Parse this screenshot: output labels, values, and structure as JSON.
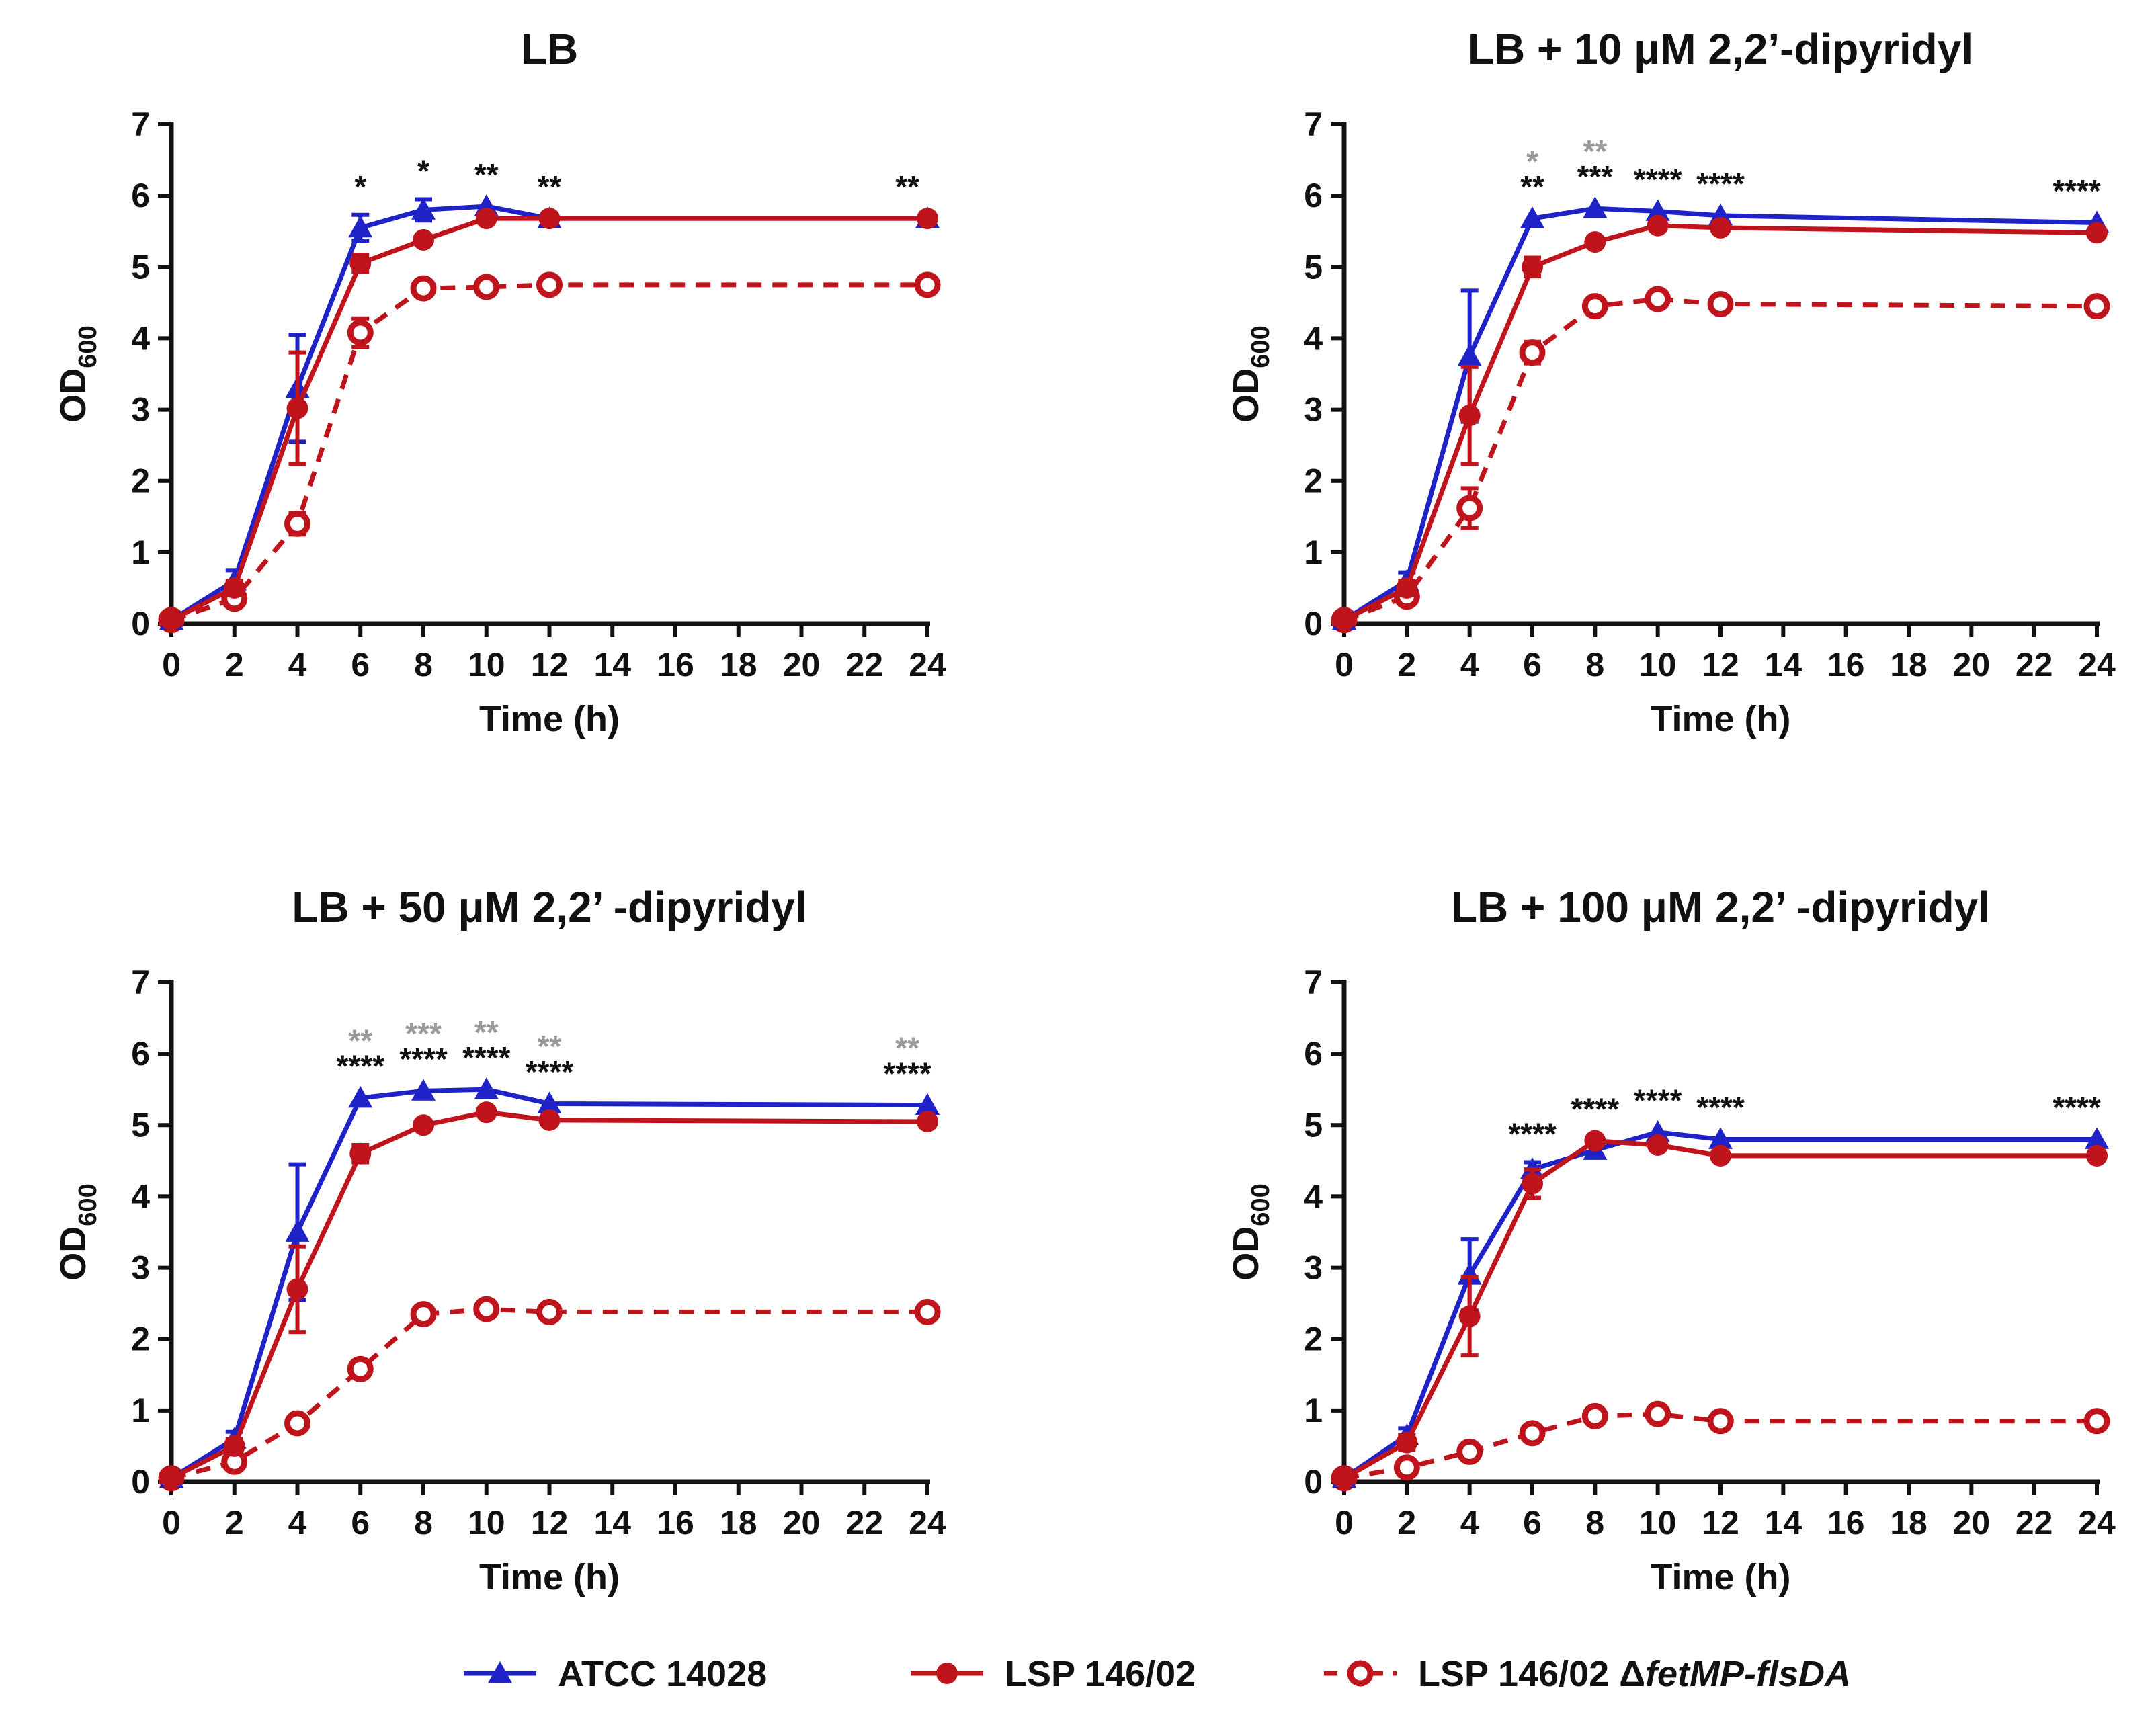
{
  "figure": {
    "legend": [
      {
        "label": "ATCC 14028",
        "series": "atcc",
        "label_suffix": ""
      },
      {
        "label": "LSP 146/02",
        "series": "lsp",
        "label_suffix": ""
      },
      {
        "label": "LSP 146/02 Δ",
        "series": "mut",
        "label_suffix": "fetMP-flsDA"
      }
    ],
    "series_styles": {
      "atcc": {
        "color": "#1f22c7",
        "marker": "triangle",
        "dash": "solid"
      },
      "lsp": {
        "color": "#c0141c",
        "marker": "circle",
        "dash": "solid"
      },
      "mut": {
        "color": "#c0141c",
        "marker": "open-circle",
        "dash": "dashed"
      }
    },
    "significance_colors": {
      "black": "#111111",
      "gray": "#9a9a9a"
    }
  },
  "chart_data": [
    {
      "type": "line",
      "title": "LB",
      "xlabel": "Time (h)",
      "ylabel": "OD",
      "ylabel_sub": "600",
      "ylim": [
        0,
        7
      ],
      "yticks": [
        0,
        1,
        2,
        3,
        4,
        5,
        6,
        7
      ],
      "xticks": [
        0,
        2,
        4,
        6,
        8,
        10,
        12,
        14,
        16,
        18,
        20,
        22,
        24
      ],
      "x": [
        0,
        2,
        4,
        6,
        8,
        10,
        12,
        24
      ],
      "series": [
        {
          "key": "atcc",
          "name": "ATCC 14028",
          "values": [
            0.05,
            0.6,
            3.3,
            5.55,
            5.8,
            5.85,
            5.68,
            5.68
          ],
          "errors": [
            0.03,
            0.15,
            0.75,
            0.18,
            0.15,
            0.05,
            0.05,
            0.05
          ]
        },
        {
          "key": "lsp",
          "name": "LSP 146/02",
          "values": [
            0.05,
            0.5,
            3.02,
            5.05,
            5.38,
            5.68,
            5.68,
            5.68
          ],
          "errors": [
            0.03,
            0.1,
            0.78,
            0.12,
            0.05,
            0.05,
            0.05,
            0.05
          ]
        },
        {
          "key": "mut",
          "name": "LSP 146/02 ΔfetMP-flsDA",
          "values": [
            0.05,
            0.35,
            1.4,
            4.08,
            4.7,
            4.72,
            4.75,
            4.75
          ],
          "errors": [
            0.03,
            0.05,
            0.15,
            0.2,
            0.1,
            0.1,
            0.1,
            0.1
          ]
        }
      ],
      "annotations": [
        {
          "x": 6,
          "lines": [
            {
              "text": "*",
              "color": "black"
            }
          ]
        },
        {
          "x": 8,
          "lines": [
            {
              "text": "*",
              "color": "black"
            }
          ]
        },
        {
          "x": 10,
          "lines": [
            {
              "text": "**",
              "color": "black"
            }
          ]
        },
        {
          "x": 12,
          "lines": [
            {
              "text": "**",
              "color": "black"
            }
          ]
        },
        {
          "x": 24,
          "lines": [
            {
              "text": "**",
              "color": "black"
            }
          ]
        }
      ]
    },
    {
      "type": "line",
      "title": "LB + 10 μM 2,2’-dipyridyl",
      "xlabel": "Time (h)",
      "ylabel": "OD",
      "ylabel_sub": "600",
      "ylim": [
        0,
        7
      ],
      "yticks": [
        0,
        1,
        2,
        3,
        4,
        5,
        6,
        7
      ],
      "xticks": [
        0,
        2,
        4,
        6,
        8,
        10,
        12,
        14,
        16,
        18,
        20,
        22,
        24
      ],
      "x": [
        0,
        2,
        4,
        6,
        8,
        10,
        12,
        24
      ],
      "series": [
        {
          "key": "atcc",
          "name": "ATCC 14028",
          "values": [
            0.05,
            0.6,
            3.75,
            5.68,
            5.82,
            5.78,
            5.72,
            5.62
          ],
          "errors": [
            0.03,
            0.12,
            0.92,
            0.05,
            0.05,
            0.05,
            0.05,
            0.05
          ]
        },
        {
          "key": "lsp",
          "name": "LSP 146/02",
          "values": [
            0.05,
            0.5,
            2.92,
            5.0,
            5.35,
            5.58,
            5.55,
            5.48
          ],
          "errors": [
            0.03,
            0.1,
            0.68,
            0.13,
            0.05,
            0.05,
            0.05,
            0.05
          ]
        },
        {
          "key": "mut",
          "name": "LSP 146/02 ΔfetMP-flsDA",
          "values": [
            0.05,
            0.38,
            1.62,
            3.8,
            4.45,
            4.55,
            4.48,
            4.45
          ],
          "errors": [
            0.03,
            0.05,
            0.28,
            0.15,
            0.05,
            0.05,
            0.05,
            0.05
          ]
        }
      ],
      "annotations": [
        {
          "x": 6,
          "lines": [
            {
              "text": "*",
              "color": "gray"
            },
            {
              "text": "**",
              "color": "black"
            }
          ]
        },
        {
          "x": 8,
          "lines": [
            {
              "text": "**",
              "color": "gray"
            },
            {
              "text": "***",
              "color": "black"
            }
          ]
        },
        {
          "x": 10,
          "lines": [
            {
              "text": "****",
              "color": "black"
            }
          ]
        },
        {
          "x": 12,
          "lines": [
            {
              "text": "****",
              "color": "black"
            }
          ]
        },
        {
          "x": 24,
          "lines": [
            {
              "text": "****",
              "color": "black"
            }
          ]
        }
      ]
    },
    {
      "type": "line",
      "title": "LB + 50 μM 2,2’ -dipyridyl",
      "xlabel": "Time (h)",
      "ylabel": "OD",
      "ylabel_sub": "600",
      "ylim": [
        0,
        7
      ],
      "yticks": [
        0,
        1,
        2,
        3,
        4,
        5,
        6,
        7
      ],
      "xticks": [
        0,
        2,
        4,
        6,
        8,
        10,
        12,
        14,
        16,
        18,
        20,
        22,
        24
      ],
      "x": [
        0,
        2,
        4,
        6,
        8,
        10,
        12,
        24
      ],
      "series": [
        {
          "key": "atcc",
          "name": "ATCC 14028",
          "values": [
            0.05,
            0.6,
            3.5,
            5.38,
            5.48,
            5.5,
            5.3,
            5.28
          ],
          "errors": [
            0.03,
            0.1,
            0.95,
            0.05,
            0.05,
            0.05,
            0.05,
            0.05
          ]
        },
        {
          "key": "lsp",
          "name": "LSP 146/02",
          "values": [
            0.05,
            0.5,
            2.7,
            4.6,
            5.0,
            5.18,
            5.07,
            5.05
          ],
          "errors": [
            0.03,
            0.1,
            0.6,
            0.12,
            0.05,
            0.05,
            0.05,
            0.05
          ]
        },
        {
          "key": "mut",
          "name": "LSP 146/02 ΔfetMP-flsDA",
          "values": [
            0.05,
            0.28,
            0.82,
            1.58,
            2.35,
            2.42,
            2.38,
            2.38
          ],
          "errors": [
            0.03,
            0.03,
            0.05,
            0.05,
            0.05,
            0.05,
            0.05,
            0.05
          ]
        }
      ],
      "annotations": [
        {
          "x": 6,
          "lines": [
            {
              "text": "**",
              "color": "gray"
            },
            {
              "text": "****",
              "color": "black"
            }
          ]
        },
        {
          "x": 8,
          "lines": [
            {
              "text": "***",
              "color": "gray"
            },
            {
              "text": "****",
              "color": "black"
            }
          ]
        },
        {
          "x": 10,
          "lines": [
            {
              "text": "**",
              "color": "gray"
            },
            {
              "text": "****",
              "color": "black"
            }
          ]
        },
        {
          "x": 12,
          "lines": [
            {
              "text": "**",
              "color": "gray"
            },
            {
              "text": "****",
              "color": "black"
            }
          ]
        },
        {
          "x": 24,
          "lines": [
            {
              "text": "**",
              "color": "gray"
            },
            {
              "text": "****",
              "color": "black"
            }
          ]
        }
      ]
    },
    {
      "type": "line",
      "title": "LB + 100 μM 2,2’ -dipyridyl",
      "xlabel": "Time (h)",
      "ylabel": "OD",
      "ylabel_sub": "600",
      "ylim": [
        0,
        7
      ],
      "yticks": [
        0,
        1,
        2,
        3,
        4,
        5,
        6,
        7
      ],
      "xticks": [
        0,
        2,
        4,
        6,
        8,
        10,
        12,
        14,
        16,
        18,
        20,
        22,
        24
      ],
      "x": [
        0,
        2,
        4,
        6,
        8,
        10,
        12,
        24
      ],
      "series": [
        {
          "key": "atcc",
          "name": "ATCC 14028",
          "values": [
            0.05,
            0.65,
            2.9,
            4.38,
            4.65,
            4.9,
            4.8,
            4.8
          ],
          "errors": [
            0.03,
            0.1,
            0.5,
            0.1,
            0.1,
            0.05,
            0.05,
            0.05
          ]
        },
        {
          "key": "lsp",
          "name": "LSP 146/02",
          "values": [
            0.05,
            0.55,
            2.32,
            4.18,
            4.78,
            4.72,
            4.57,
            4.57
          ],
          "errors": [
            0.03,
            0.1,
            0.55,
            0.2,
            0.05,
            0.05,
            0.05,
            0.05
          ]
        },
        {
          "key": "mut",
          "name": "LSP 146/02 ΔfetMP-flsDA",
          "values": [
            0.05,
            0.2,
            0.42,
            0.68,
            0.92,
            0.95,
            0.85,
            0.85
          ],
          "errors": [
            0.03,
            0.05,
            0.05,
            0.05,
            0.05,
            0.05,
            0.05,
            0.05
          ]
        }
      ],
      "annotations": [
        {
          "x": 6,
          "lines": [
            {
              "text": "****",
              "color": "black"
            }
          ]
        },
        {
          "x": 8,
          "lines": [
            {
              "text": "****",
              "color": "black"
            }
          ]
        },
        {
          "x": 10,
          "lines": [
            {
              "text": "****",
              "color": "black"
            }
          ]
        },
        {
          "x": 12,
          "lines": [
            {
              "text": "****",
              "color": "black"
            }
          ]
        },
        {
          "x": 24,
          "lines": [
            {
              "text": "****",
              "color": "black"
            }
          ]
        }
      ]
    }
  ]
}
